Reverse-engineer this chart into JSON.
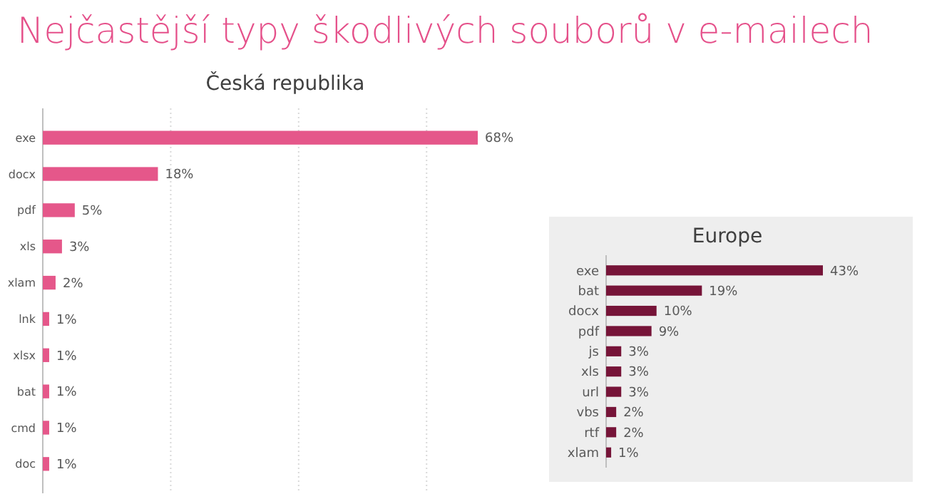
{
  "chart_data": [
    {
      "type": "bar",
      "orientation": "horizontal",
      "title": "Nejčastější typy škodlivých souborů v e-mailech",
      "subtitle": "Česká republika",
      "categories": [
        "exe",
        "docx",
        "pdf",
        "xls",
        "xlam",
        "lnk",
        "xlsx",
        "bat",
        "cmd",
        "doc"
      ],
      "values": [
        68,
        18,
        5,
        3,
        2,
        1,
        1,
        1,
        1,
        1
      ],
      "value_labels": [
        "68%",
        "18%",
        "5%",
        "3%",
        "2%",
        "1%",
        "1%",
        "1%",
        "1%",
        "1%"
      ],
      "color": "#e5578a",
      "xticks": [
        {
          "value": 0,
          "label": null
        },
        {
          "value": 20,
          "label": null
        },
        {
          "value": 40,
          "label": null
        },
        {
          "value": 60,
          "label": null
        }
      ],
      "grid": "x",
      "tick_labels": "y"
    },
    {
      "type": "bar",
      "orientation": "horizontal",
      "title": "Europe",
      "categories": [
        "exe",
        "bat",
        "docx",
        "pdf",
        "js",
        "xls",
        "url",
        "vbs",
        "rtf",
        "xlam"
      ],
      "values": [
        43,
        19,
        10,
        9,
        3,
        3,
        3,
        2,
        2,
        1
      ],
      "value_labels": [
        "43%",
        "19%",
        "10%",
        "9%",
        "3%",
        "3%",
        "3%",
        "2%",
        "2%",
        "1%"
      ],
      "color": "#761438",
      "tick_labels": "y"
    }
  ]
}
